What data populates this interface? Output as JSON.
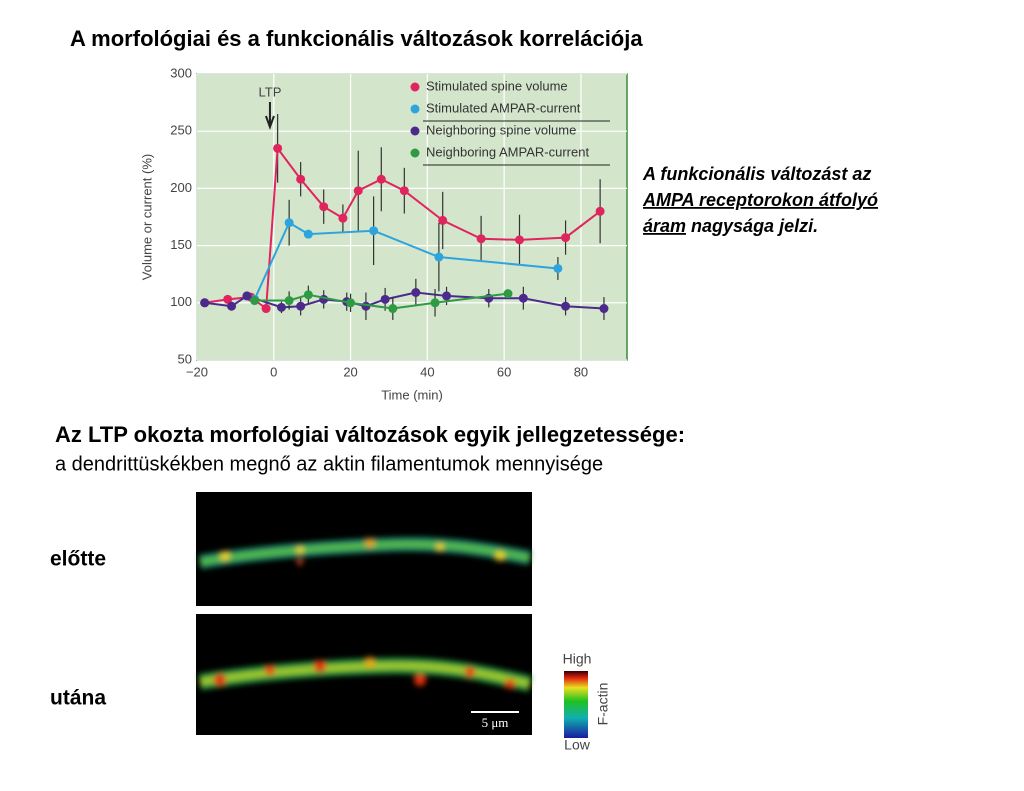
{
  "slide_title": "A morfológiai és a funkcionális változások korrelációja",
  "note": [
    [
      {
        "text": "A funkcionális változást az",
        "underline": false
      }
    ],
    [
      {
        "text": "AMPA receptorokon átfolyó",
        "underline": true
      }
    ],
    [
      {
        "text": "áram",
        "underline": true
      },
      {
        "text": " nagysága jelzi.",
        "underline": false
      }
    ]
  ],
  "section_heading": "Az LTP okozta morfológiai változások egyik jellegzetessége:",
  "section_text": "a dendrittüskékben megnő az aktin filamentumok mennyisége",
  "images": {
    "before_label": "előtte",
    "after_label": "utána",
    "scale_bar": "5 μm",
    "colorbar_high": "High",
    "colorbar_low": "Low",
    "colorbar_label": "F-actin"
  },
  "chart_data": {
    "type": "line",
    "x_label": "Time (min)",
    "y_label": "Volume or current (%)",
    "annotation": "LTP",
    "annotation_x": -1,
    "xlim": [
      -20,
      92
    ],
    "ylim": [
      50,
      300
    ],
    "xticks": [
      {
        "value": -20,
        "label": "−20"
      },
      0,
      20,
      40,
      60,
      80
    ],
    "yticks": [
      50,
      100,
      150,
      200,
      250,
      300
    ],
    "grid": true,
    "background": "#d3e6cc",
    "legend": "top-right",
    "series": [
      {
        "name": "Stimulated spine volume",
        "color": "#e0245e",
        "x": [
          -18,
          -12,
          -6,
          -2,
          1,
          7,
          13,
          18,
          22,
          28,
          34,
          44,
          54,
          64,
          76,
          85
        ],
        "values": [
          100,
          103,
          105,
          95,
          235,
          208,
          184,
          174,
          198,
          208,
          198,
          172,
          156,
          155,
          157,
          180
        ],
        "errors": [
          0,
          0,
          0,
          0,
          30,
          15,
          15,
          12,
          35,
          28,
          20,
          25,
          20,
          22,
          15,
          28
        ]
      },
      {
        "name": "Stimulated AMPAR-current",
        "color": "#2fa4dc",
        "x": [
          -5,
          4,
          9,
          26,
          43,
          74
        ],
        "values": [
          103,
          170,
          160,
          163,
          140,
          130
        ],
        "errors": [
          0,
          20,
          0,
          30,
          30,
          10
        ]
      },
      {
        "name": "Neighboring spine volume",
        "color": "#4b2a8c",
        "x": [
          -18,
          -11,
          -7,
          2,
          7,
          13,
          19,
          24,
          29,
          37,
          45,
          56,
          65,
          76,
          86
        ],
        "values": [
          100,
          97,
          106,
          96,
          97,
          103,
          101,
          97,
          103,
          109,
          106,
          104,
          104,
          97,
          95
        ],
        "errors": [
          0,
          0,
          0,
          5,
          8,
          8,
          8,
          12,
          10,
          12,
          8,
          8,
          10,
          8,
          10
        ]
      },
      {
        "name": "Neighboring AMPAR-current",
        "color": "#2e9a44",
        "x": [
          -5,
          4,
          9,
          20,
          31,
          42,
          61
        ],
        "values": [
          102,
          102,
          107,
          100,
          95,
          100,
          108
        ],
        "errors": [
          0,
          8,
          8,
          8,
          10,
          12,
          0
        ]
      }
    ]
  }
}
